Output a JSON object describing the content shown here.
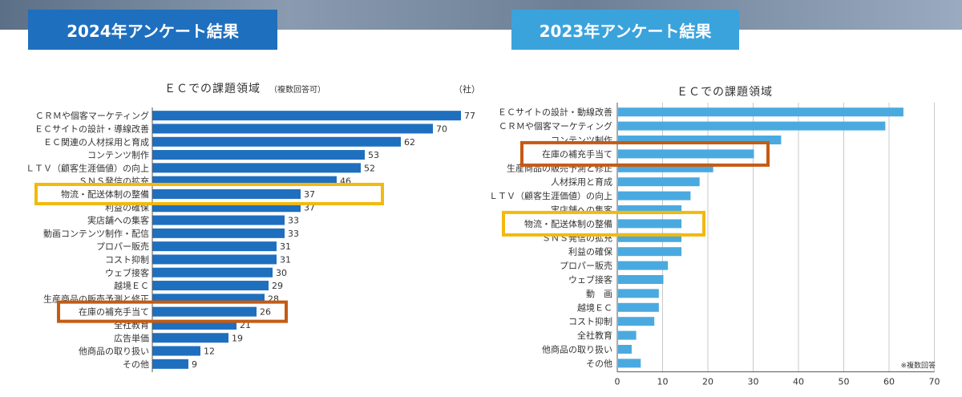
{
  "banners": {
    "left": "2024年アンケート結果",
    "right": "2023年アンケート結果"
  },
  "chart_data": [
    {
      "type": "bar",
      "orientation": "horizontal",
      "title": "ＥＣでの課題領域",
      "subtitle": "（複数回答可）",
      "unit": "（社）",
      "color": "#1f6fbf",
      "categories": [
        "ＣＲＭや個客マーケティング",
        "ＥＣサイトの設計・導線改善",
        "ＥＣ関連の人材採用と育成",
        "コンテンツ制作",
        "ＬＴＶ（顧客生涯価値）の向上",
        "ＳＮＳ発信の拡充",
        "物流・配送体制の整備",
        "利益の確保",
        "実店舗への集客",
        "動画コンテンツ制作・配信",
        "プロパー販売",
        "コスト抑制",
        "ウェブ接客",
        "越境ＥＣ",
        "生産商品の販売予測と修正",
        "在庫の補充手当て",
        "全社教育",
        "広告単価",
        "他商品の取り扱い",
        "その他"
      ],
      "values": [
        77,
        70,
        62,
        53,
        52,
        46,
        37,
        37,
        33,
        33,
        31,
        31,
        30,
        29,
        28,
        26,
        21,
        19,
        12,
        9
      ],
      "highlights": [
        {
          "category": "物流・配送体制の整備",
          "color": "#f2b90f"
        },
        {
          "category": "在庫の補充手当て",
          "color": "#c45b14"
        }
      ]
    },
    {
      "type": "bar",
      "orientation": "horizontal",
      "title": "ＥＣでの課題領域",
      "note": "※複数回答",
      "color": "#4aaae0",
      "xlim": [
        0,
        70
      ],
      "xticks": [
        0,
        10,
        20,
        30,
        40,
        50,
        60,
        70
      ],
      "grid": true,
      "categories": [
        "ＥＣサイトの設計・動線改善",
        "ＣＲＭや個客マーケティング",
        "コンテンツ制作",
        "在庫の補充手当て",
        "生産商品の販売予測と修正",
        "人材採用と育成",
        "ＬＴＶ（顧客生涯価値）の向上",
        "実店舗への集客",
        "物流・配送体制の整備",
        "ＳＮＳ発信の拡充",
        "利益の確保",
        "プロパー販売",
        "ウェブ接客",
        "動　画",
        "越境ＥＣ",
        "コスト抑制",
        "全社教育",
        "他商品の取り扱い",
        "その他"
      ],
      "values": [
        63,
        59,
        36,
        30,
        21,
        18,
        16,
        14,
        14,
        14,
        14,
        11,
        10,
        9,
        9,
        8,
        4,
        3,
        5
      ],
      "highlights": [
        {
          "category": "在庫の補充手当て",
          "color": "#c45b14"
        },
        {
          "category": "物流・配送体制の整備",
          "color": "#f2b90f"
        }
      ]
    }
  ]
}
